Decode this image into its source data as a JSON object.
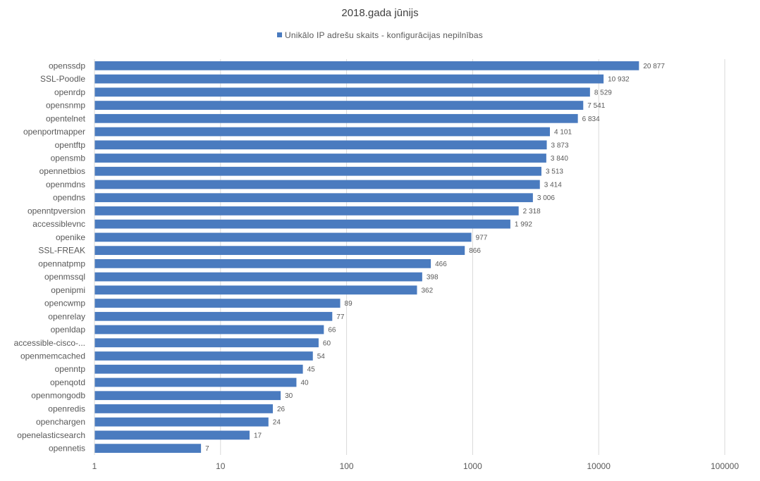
{
  "chart_data": {
    "type": "bar",
    "orientation": "horizontal",
    "title": "2018.gada jūnijs",
    "legend": {
      "position": "top",
      "entries": [
        "Unikālo IP adrešu skaits  -  konfigurācijas nepilnības"
      ]
    },
    "x_scale": "log",
    "xlim": [
      1,
      100000
    ],
    "x_ticks": [
      "1",
      "10",
      "100",
      "1000",
      "10000",
      "100000"
    ],
    "grid": true,
    "bar_color": "#4a7bbf",
    "series": [
      {
        "name": "Unikālo IP adrešu skaits  -  konfigurācijas nepilnības",
        "points": [
          {
            "category": "openssdp",
            "value": 20877,
            "label": "20 877"
          },
          {
            "category": "SSL-Poodle",
            "value": 10932,
            "label": "10 932"
          },
          {
            "category": "openrdp",
            "value": 8529,
            "label": "8 529"
          },
          {
            "category": "opensnmp",
            "value": 7541,
            "label": "7 541"
          },
          {
            "category": "opentelnet",
            "value": 6834,
            "label": "6 834"
          },
          {
            "category": "openportmapper",
            "value": 4101,
            "label": "4 101"
          },
          {
            "category": "opentftp",
            "value": 3873,
            "label": "3 873"
          },
          {
            "category": "opensmb",
            "value": 3840,
            "label": "3 840"
          },
          {
            "category": "opennetbios",
            "value": 3513,
            "label": "3 513"
          },
          {
            "category": "openmdns",
            "value": 3414,
            "label": "3 414"
          },
          {
            "category": "opendns",
            "value": 3006,
            "label": "3 006"
          },
          {
            "category": "openntpversion",
            "value": 2318,
            "label": "2 318"
          },
          {
            "category": "accessiblevnc",
            "value": 1992,
            "label": "1 992"
          },
          {
            "category": "openike",
            "value": 977,
            "label": "977"
          },
          {
            "category": "SSL-FREAK",
            "value": 866,
            "label": "866"
          },
          {
            "category": "opennatpmp",
            "value": 466,
            "label": "466"
          },
          {
            "category": "openmssql",
            "value": 398,
            "label": "398"
          },
          {
            "category": "openipmi",
            "value": 362,
            "label": "362"
          },
          {
            "category": "opencwmp",
            "value": 89,
            "label": "89"
          },
          {
            "category": "openrelay",
            "value": 77,
            "label": "77"
          },
          {
            "category": "openldap",
            "value": 66,
            "label": "66"
          },
          {
            "category": "accessible-cisco-...",
            "value": 60,
            "label": "60"
          },
          {
            "category": "openmemcached",
            "value": 54,
            "label": "54"
          },
          {
            "category": "openntp",
            "value": 45,
            "label": "45"
          },
          {
            "category": "openqotd",
            "value": 40,
            "label": "40"
          },
          {
            "category": "openmongodb",
            "value": 30,
            "label": "30"
          },
          {
            "category": "openredis",
            "value": 26,
            "label": "26"
          },
          {
            "category": "openchargen",
            "value": 24,
            "label": "24"
          },
          {
            "category": "openelasticsearch",
            "value": 17,
            "label": "17"
          },
          {
            "category": "opennetis",
            "value": 7,
            "label": "7"
          }
        ]
      }
    ]
  }
}
